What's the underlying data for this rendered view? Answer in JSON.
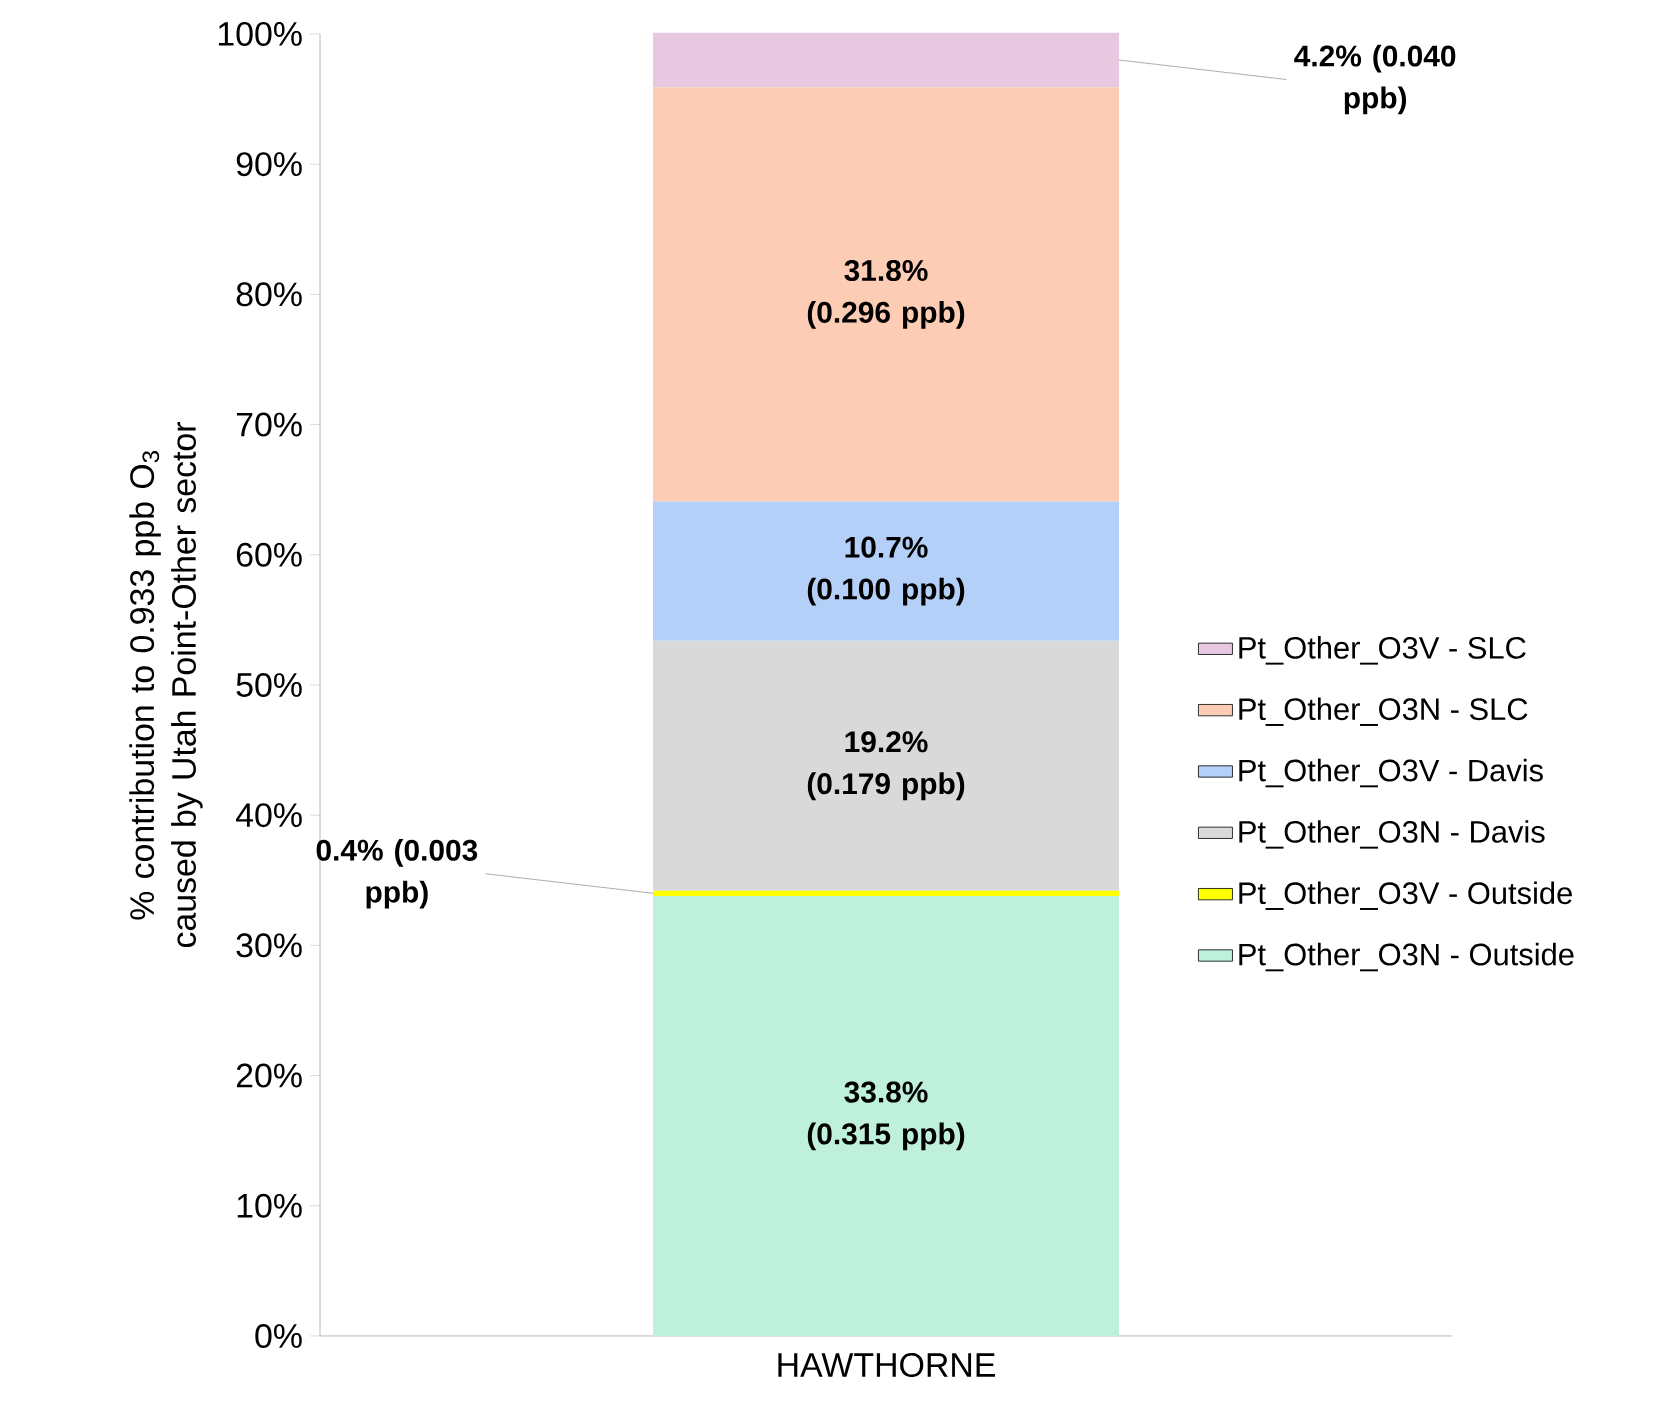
{
  "chart_data": {
    "type": "bar",
    "stacked": true,
    "ylabel": "% contribution to 0.933 ppb O$_{3}$ caused by Utah Point-Other sector",
    "categories": [
      "HAWTHORNE"
    ],
    "series": [
      {
        "name": "Pt_Other_O3N - Outside",
        "color": "#bff0dc",
        "values": [
          33.8
        ],
        "value_labels": [
          "33.8% (0.315 ppb)"
        ]
      },
      {
        "name": "Pt_Other_O3V - Outside",
        "color": "#ffff00",
        "values": [
          0.4
        ],
        "value_labels": [
          "0.4% (0.003 ppb)"
        ]
      },
      {
        "name": "Pt_Other_O3N - Davis",
        "color": "#d9d9d9",
        "values": [
          19.2
        ],
        "value_labels": [
          "19.2% (0.179 ppb)"
        ]
      },
      {
        "name": "Pt_Other_O3V - Davis",
        "color": "#b4d0f8",
        "values": [
          10.7
        ],
        "value_labels": [
          "10.7% (0.100 ppb)"
        ]
      },
      {
        "name": "Pt_Other_O3N - SLC",
        "color": "#fcccb4",
        "values": [
          31.8
        ],
        "value_labels": [
          "31.8% (0.296 ppb)"
        ]
      },
      {
        "name": "Pt_Other_O3V - SLC",
        "color": "#e8c8e0",
        "values": [
          4.2
        ],
        "value_labels": [
          "4.2% (0.040 ppb)"
        ]
      }
    ],
    "ylim": [
      0,
      100
    ],
    "yticks": [
      {
        "value": 0,
        "label": "0%"
      },
      {
        "value": 10,
        "label": "10%"
      },
      {
        "value": 20,
        "label": "20%"
      },
      {
        "value": 30,
        "label": "30%"
      },
      {
        "value": 40,
        "label": "40%"
      },
      {
        "value": 50,
        "label": "50%"
      },
      {
        "value": 60,
        "label": "60%"
      },
      {
        "value": 70,
        "label": "70%"
      },
      {
        "value": 80,
        "label": "80%"
      },
      {
        "value": 90,
        "label": "90%"
      },
      {
        "value": 100,
        "label": "100%"
      }
    ],
    "legend": "right",
    "grid": false
  }
}
